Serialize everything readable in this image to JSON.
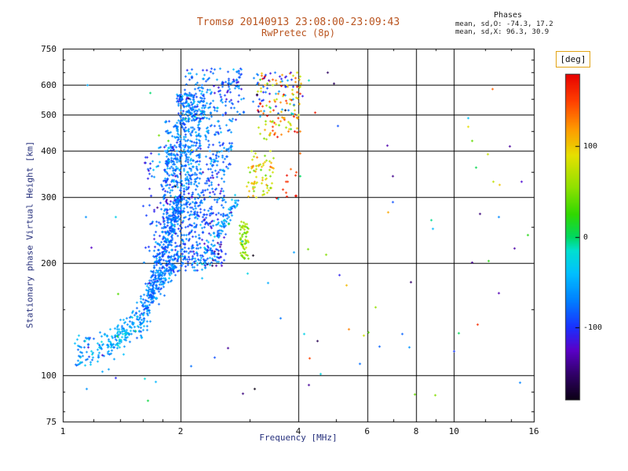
{
  "colors": {
    "background": "#ffffff",
    "title_text": "#b9541f",
    "axis_title_text": "#26307c",
    "tick_text": "#111111",
    "frame": "#000000",
    "grid": "#000000",
    "deg_box_border": "#e2a313"
  },
  "chart_data": {
    "type": "scatter",
    "title": "Tromsø 20140913 23:08:00-23:09:43",
    "subtitle": "RwPretec (8p)",
    "stats": {
      "heading": "Phases",
      "line_o": "mean, sd,O: -74.3, 17.2",
      "line_x": "mean, sd,X:  96.3, 30.9"
    },
    "xlabel": "Frequency [MHz]",
    "ylabel": "Stationary phase Virtual Height [km]",
    "x_scale": "log",
    "y_scale": "log",
    "xlim": [
      1,
      16
    ],
    "ylim": [
      75,
      750
    ],
    "xticks": [
      1,
      2,
      4,
      6,
      8,
      10,
      16
    ],
    "yticks": [
      75,
      100,
      200,
      300,
      400,
      500,
      600,
      750
    ],
    "x_minor_ticks": [
      1.2,
      1.4,
      1.6,
      1.8,
      3,
      5,
      7,
      9,
      12,
      14
    ],
    "y_minor_ticks": [
      80,
      90,
      150,
      250,
      350,
      450,
      550,
      650,
      700
    ],
    "grid_x": [
      2,
      4,
      6,
      8,
      10
    ],
    "grid_y": [
      100,
      200,
      300,
      400,
      500,
      600
    ],
    "grid": "on",
    "legend_position": "none",
    "marker": "small plus, ~2px, colored by phase",
    "phase_stats": {
      "o_mean": -74.3,
      "o_sd": 17.2,
      "x_mean": 96.3,
      "x_sd": 30.9
    },
    "colorbar": {
      "label": "[deg]",
      "ticks": [
        100,
        0,
        -100
      ],
      "range": [
        -180,
        180
      ],
      "stops": [
        {
          "v": -180,
          "c": "#0b0014"
        },
        {
          "v": -150,
          "c": "#33006e"
        },
        {
          "v": -125,
          "c": "#5a00c8"
        },
        {
          "v": -100,
          "c": "#1a30ff"
        },
        {
          "v": -70,
          "c": "#0080ff"
        },
        {
          "v": -40,
          "c": "#00c0ff"
        },
        {
          "v": -15,
          "c": "#00e0d0"
        },
        {
          "v": 0,
          "c": "#00d860"
        },
        {
          "v": 25,
          "c": "#30d800"
        },
        {
          "v": 55,
          "c": "#90e000"
        },
        {
          "v": 90,
          "c": "#e6e000"
        },
        {
          "v": 120,
          "c": "#ff9800"
        },
        {
          "v": 150,
          "c": "#ff4000"
        },
        {
          "v": 180,
          "c": "#e80000"
        }
      ]
    },
    "clusters": [
      {
        "shape": "blob",
        "f": [
          1.07,
          1.2
        ],
        "h": [
          106,
          128
        ],
        "n": 45,
        "phase": [
          -55,
          20
        ]
      },
      {
        "shape": "diag",
        "f0": 1.22,
        "h0": 115,
        "f1": 1.65,
        "h1": 143,
        "jh": 6,
        "n": 170,
        "phase": [
          -50,
          18
        ]
      },
      {
        "shape": "diag",
        "f0": 1.55,
        "h0": 140,
        "f1": 1.95,
        "h1": 205,
        "jh": 9,
        "n": 200,
        "phase": [
          -70,
          15
        ]
      },
      {
        "shape": "diag",
        "f0": 1.65,
        "h0": 160,
        "f1": 2.0,
        "h1": 290,
        "jh": 14,
        "n": 240,
        "phase": [
          -75,
          15
        ]
      },
      {
        "shape": "blob",
        "f": [
          1.8,
          2.25
        ],
        "h": [
          190,
          320
        ],
        "n": 320,
        "phase": [
          -80,
          18
        ]
      },
      {
        "shape": "blob",
        "f": [
          1.82,
          2.25
        ],
        "h": [
          320,
          480
        ],
        "n": 330,
        "phase": [
          -70,
          16
        ]
      },
      {
        "shape": "blob",
        "f": [
          1.95,
          2.3
        ],
        "h": [
          480,
          570
        ],
        "n": 150,
        "phase": [
          -68,
          18
        ]
      },
      {
        "shape": "blob",
        "f": [
          2.25,
          2.6
        ],
        "h": [
          200,
          350
        ],
        "n": 150,
        "phase": [
          -85,
          20
        ]
      },
      {
        "shape": "blob",
        "f": [
          2.3,
          2.7
        ],
        "h": [
          350,
          470
        ],
        "n": 90,
        "phase": [
          -75,
          18
        ]
      },
      {
        "shape": "blob",
        "f": [
          2.05,
          2.9
        ],
        "h": [
          480,
          665
        ],
        "n": 170,
        "phase": [
          -78,
          22
        ]
      },
      {
        "shape": "diag",
        "f0": 2.28,
        "h0": 195,
        "f1": 2.78,
        "h1": 295,
        "jh": 8,
        "n": 90,
        "phase": [
          -55,
          18
        ]
      },
      {
        "shape": "blob",
        "f": [
          1.6,
          1.95
        ],
        "h": [
          200,
          420
        ],
        "n": 100,
        "phase": [
          -85,
          25
        ]
      },
      {
        "shape": "blob",
        "f": [
          2.83,
          3.0
        ],
        "h": [
          205,
          258
        ],
        "n": 65,
        "phase": [
          55,
          18
        ]
      },
      {
        "shape": "blob",
        "f": [
          2.95,
          3.45
        ],
        "h": [
          300,
          400
        ],
        "n": 70,
        "phase": [
          85,
          22
        ]
      },
      {
        "shape": "blob",
        "f": [
          3.15,
          4.05
        ],
        "h": [
          430,
          660
        ],
        "n": 120,
        "phase": [
          115,
          40
        ]
      },
      {
        "shape": "blob",
        "f": [
          3.0,
          3.9
        ],
        "h": [
          500,
          650
        ],
        "n": 45,
        "phase": [
          -95,
          35
        ]
      },
      {
        "shape": "blob",
        "f": [
          3.5,
          3.95
        ],
        "h": [
          290,
          360
        ],
        "n": 12,
        "phase": [
          165,
          15
        ]
      },
      {
        "shape": "blob",
        "f": [
          2.3,
          2.55
        ],
        "h": [
          195,
          230
        ],
        "n": 20,
        "phase": [
          -130,
          25
        ]
      },
      {
        "shape": "uniform",
        "f": [
          4.0,
          15.5
        ],
        "h": [
          85,
          660
        ],
        "n": 55,
        "phase": "uniform"
      },
      {
        "shape": "uniform",
        "f": [
          1.1,
          3.9
        ],
        "h": [
          82,
          700
        ],
        "n": 45,
        "phase": [
          -70,
          70
        ]
      }
    ]
  }
}
